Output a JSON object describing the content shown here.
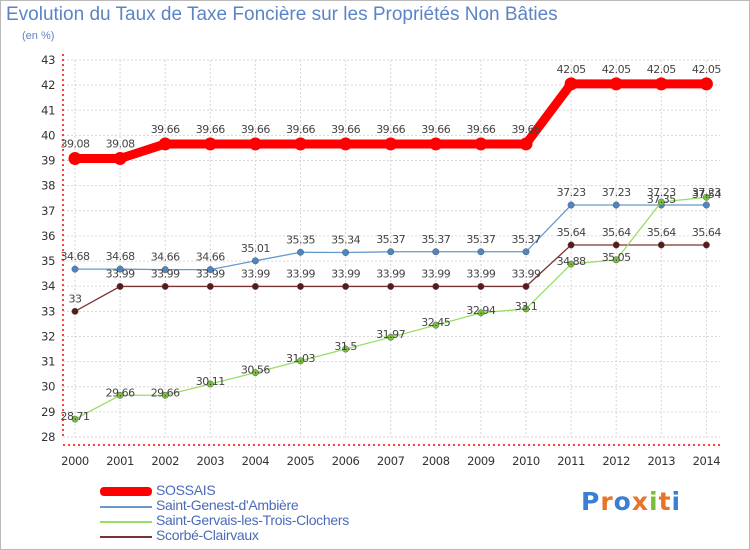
{
  "chart_data": {
    "type": "line",
    "title": "Evolution du Taux de Taxe Foncière sur les Propriétés Non Bâties",
    "subtitle": "(en %)",
    "x": [
      2000,
      2001,
      2002,
      2003,
      2004,
      2005,
      2006,
      2007,
      2008,
      2009,
      2010,
      2011,
      2012,
      2013,
      2014
    ],
    "ylim": [
      28,
      43
    ],
    "yticks": [
      28,
      29,
      30,
      31,
      32,
      33,
      34,
      35,
      36,
      37,
      38,
      39,
      40,
      41,
      42,
      43
    ],
    "grid": true,
    "series": [
      {
        "name": "SOSSAIS",
        "color": "#ff0000",
        "emphasis": true,
        "values": [
          39.08,
          39.08,
          39.66,
          39.66,
          39.66,
          39.66,
          39.66,
          39.66,
          39.66,
          39.66,
          39.66,
          42.05,
          42.05,
          42.05,
          42.05
        ],
        "labels": [
          "39.08",
          "39.08",
          "39.66",
          "39.66",
          "39.66",
          "39.66",
          "39.66",
          "39.66",
          "39.66",
          "39.66",
          "39.66",
          "42.05",
          "42.05",
          "42.05",
          "42.05"
        ]
      },
      {
        "name": "Saint-Genest-d'Ambière",
        "color": "#6699cc",
        "marker": "#4d86c5",
        "values": [
          34.68,
          34.68,
          34.66,
          34.66,
          35.01,
          35.35,
          35.34,
          35.37,
          35.37,
          35.37,
          35.37,
          37.23,
          37.23,
          37.23,
          37.23
        ],
        "labels": [
          "34.68",
          "34.68",
          "34.66",
          "34.66",
          "35.01",
          "35.35",
          "35.34",
          "35.37",
          "35.37",
          "35.37",
          "35.37",
          "37.23",
          "37.23",
          "37.23",
          "37.23"
        ]
      },
      {
        "name": "Saint-Gervais-les-Trois-Clochers",
        "color": "#99dd66",
        "marker": "#77c23a",
        "values": [
          28.71,
          29.66,
          29.66,
          30.11,
          30.56,
          31.03,
          31.5,
          31.97,
          32.45,
          32.94,
          33.1,
          34.88,
          35.05,
          37.35,
          37.54
        ],
        "labels": [
          "28.71",
          "29.66",
          "29.66",
          "30.11",
          "30.56",
          "31.03",
          "31.5",
          "31.97",
          "32.45",
          "32.94",
          "33.1",
          "34.88",
          "35.05",
          "37.35",
          "37.54"
        ]
      },
      {
        "name": "Scorbé-Clairvaux",
        "color": "#7a3333",
        "marker": "#5a1a1a",
        "values": [
          33,
          33.99,
          33.99,
          33.99,
          33.99,
          33.99,
          33.99,
          33.99,
          33.99,
          33.99,
          33.99,
          35.64,
          35.64,
          35.64,
          35.64
        ],
        "labels": [
          "33",
          "33.99",
          "33.99",
          "33.99",
          "33.99",
          "33.99",
          "33.99",
          "33.99",
          "33.99",
          "33.99",
          "33.99",
          "35.64",
          "35.64",
          "35.64",
          "35.64"
        ]
      }
    ]
  },
  "logo": {
    "text": "Proxiti",
    "letters": [
      "P",
      "r",
      "o",
      "x",
      "i",
      "t",
      "i"
    ],
    "colors": [
      "#3b7fd4",
      "#e8742a",
      "#3b7fd4",
      "#e8742a",
      "#7abd36",
      "#e8742a",
      "#3b7fd4"
    ]
  }
}
